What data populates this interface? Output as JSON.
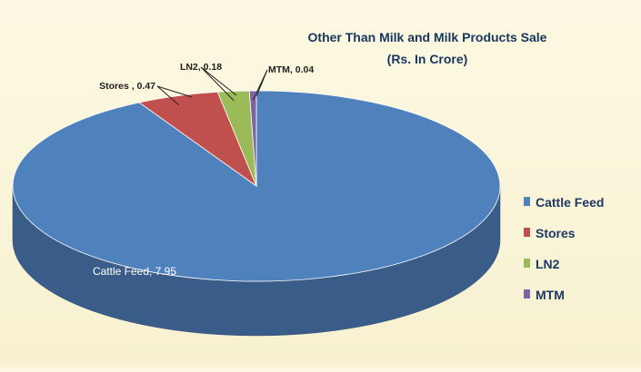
{
  "chart_data": {
    "type": "pie",
    "title": "Other Than Milk and Milk Products Sale",
    "subtitle": "(Rs. In Crore)",
    "categories": [
      "Cattle Feed",
      "Stores",
      "LN2",
      "MTM"
    ],
    "values": [
      7.95,
      0.47,
      0.18,
      0.04
    ],
    "data_labels": [
      "Cattle Feed, 7.95",
      "Stores , 0.47",
      "LN2, 0.18",
      "MTM, 0.04"
    ],
    "colors": [
      "#4f81bd",
      "#c0504d",
      "#9bbb59",
      "#8064a2"
    ],
    "legend_position": "right",
    "three_d": true
  }
}
